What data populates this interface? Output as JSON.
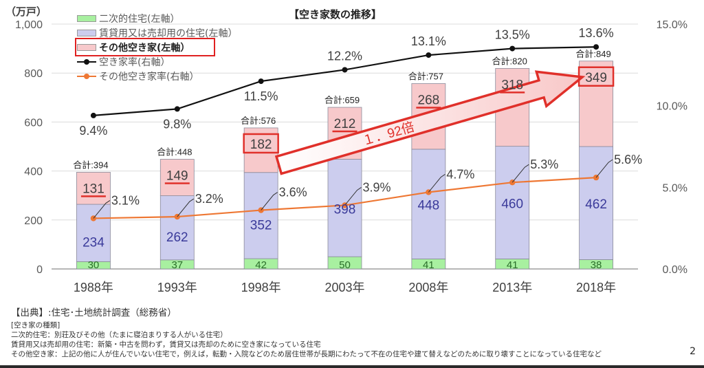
{
  "page": {
    "unit_label": "（万戸）",
    "title": "【空き家数の推移】",
    "page_number": "2"
  },
  "legend": [
    {
      "label": "二次的住宅(左軸）",
      "kind": "bar",
      "color": "#a8f0a0"
    },
    {
      "label": "賃貸用又は売却用の住宅(左軸）",
      "kind": "bar",
      "color": "#cccdee"
    },
    {
      "label": "その他空き家(左軸）",
      "kind": "bar",
      "color": "#f7c9cb",
      "highlighted": true
    },
    {
      "label": "空き家率(右軸）",
      "kind": "line",
      "color": "#111111"
    },
    {
      "label": "その他空き家率(右軸）",
      "kind": "line",
      "color": "#ee7733"
    }
  ],
  "chart_data": {
    "type": "bar",
    "title": "【空き家数の推移】",
    "categories": [
      "1988年",
      "1993年",
      "1998年",
      "2003年",
      "2008年",
      "2013年",
      "2018年"
    ],
    "series": [
      {
        "name": "二次的住宅(左軸）",
        "type": "stacked-bar",
        "axis": "left",
        "color": "#a8f0a0",
        "label_color": "#2a6e2a",
        "values": [
          30,
          37,
          42,
          50,
          41,
          41,
          38
        ]
      },
      {
        "name": "賃貸用又は売却用の住宅(左軸）",
        "type": "stacked-bar",
        "axis": "left",
        "color": "#cccdee",
        "label_color": "#3a3a9a",
        "values": [
          234,
          262,
          352,
          398,
          448,
          460,
          462
        ]
      },
      {
        "name": "その他空き家(左軸）",
        "type": "stacked-bar",
        "axis": "left",
        "color": "#f7c9cb",
        "label_color": "#404040",
        "values": [
          131,
          149,
          182,
          212,
          268,
          318,
          349
        ]
      },
      {
        "name": "空き家率(右軸）",
        "type": "line",
        "axis": "right",
        "color": "#111111",
        "values": [
          9.4,
          9.8,
          11.5,
          12.2,
          13.1,
          13.5,
          13.6
        ],
        "labels": [
          "9.4%",
          "9.8%",
          "11.5%",
          "12.2%",
          "13.1%",
          "13.5%",
          "13.6%"
        ]
      },
      {
        "name": "その他空き家率(右軸）",
        "type": "line",
        "axis": "right",
        "color": "#ee7733",
        "values": [
          3.1,
          3.2,
          3.6,
          3.9,
          4.7,
          5.3,
          5.6
        ],
        "labels": [
          "3.1%",
          "3.2%",
          "3.6%",
          "3.9%",
          "4.7%",
          "5.3%",
          "5.6%"
        ]
      }
    ],
    "totals": [
      394,
      448,
      576,
      659,
      757,
      820,
      849
    ],
    "total_prefix": "合計:",
    "left_axis": {
      "label": "（万戸）",
      "range": [
        0,
        1000
      ],
      "ticks": [
        0,
        200,
        400,
        600,
        800,
        1000
      ],
      "tick_labels": [
        "0",
        "200",
        "400",
        "600",
        "800",
        "1,000"
      ]
    },
    "right_axis": {
      "range": [
        0,
        15
      ],
      "ticks": [
        0,
        5,
        10,
        15
      ],
      "tick_labels": [
        "0.0%",
        "5.0%",
        "10.0%",
        "15.0%"
      ]
    },
    "grid": true,
    "legend_position": "top-left",
    "annotations": [
      {
        "type": "arrow",
        "from_category": "1998年",
        "to_category": "2018年",
        "text": "１．92倍",
        "color": "#e0302a"
      },
      {
        "type": "box",
        "category": "1998年",
        "series": "その他空き家(左軸）",
        "color": "#e0302a"
      },
      {
        "type": "box",
        "category": "2018年",
        "series": "その他空き家(左軸）",
        "color": "#e0302a"
      },
      {
        "type": "underline",
        "categories": [
          "1988年",
          "1993年",
          "2003年",
          "2008年",
          "2013年"
        ],
        "series": "その他空き家(左軸）",
        "color": "#e0302a"
      }
    ]
  },
  "footer": {
    "source": "【出典】:住宅･土地統計調査（総務省）",
    "lines": [
      "[空き家の種類]",
      "二次的住宅：別荘及びその他（たまに寝泊まりする人がいる住宅）",
      "賃貸用又は売却用の住宅：新築・中古を問わず，賃貸又は売却のために空き家になっている住宅",
      "その他空き家：上記の他に人が住んでいない住宅で，例えば，転勤・入院などのため居住世帯が長期にわたって不在の住宅や建て替えなどのために取り壊すことになっている住宅など"
    ]
  }
}
